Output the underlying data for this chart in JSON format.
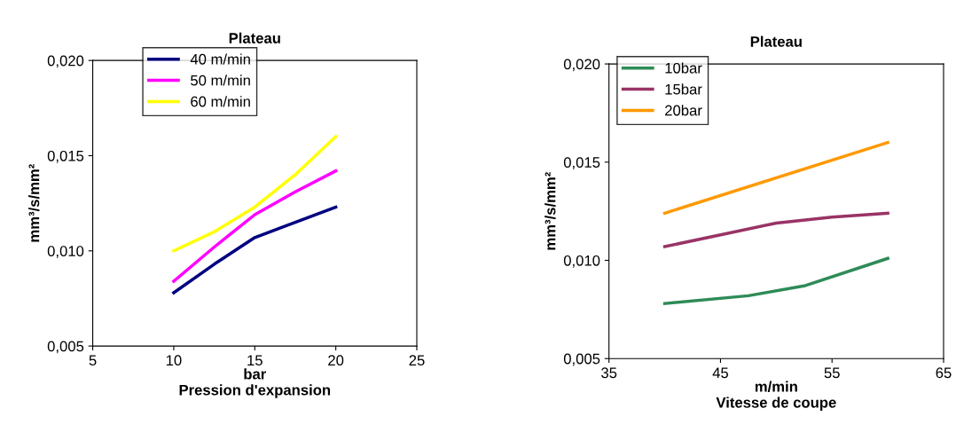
{
  "chart_data": [
    {
      "type": "line",
      "title": "Plateau",
      "xlabel": "bar\nPression d'expansion",
      "ylabel": "mm³/s/mm²",
      "legend": "top left",
      "grid": false,
      "marker": "none",
      "line_style": "solid",
      "xlim": [
        5,
        25
      ],
      "xticks": [
        5,
        10,
        15,
        20,
        25
      ],
      "ylim": [
        0.005,
        0.02
      ],
      "yticks": [
        {
          "value": 0.005,
          "label": "0,005"
        },
        {
          "value": 0.01,
          "label": "0,010"
        },
        {
          "value": 0.015,
          "label": "0,015"
        },
        {
          "value": 0.02,
          "label": "0,020"
        }
      ],
      "series": [
        {
          "name": "40 m/min",
          "color": "#000080",
          "x": [
            10,
            12.5,
            15,
            17.5,
            20
          ],
          "values": [
            0.0078,
            0.0093,
            0.0107,
            0.0115,
            0.0123
          ]
        },
        {
          "name": "50 m/min",
          "color": "#ff00ff",
          "x": [
            10,
            12.5,
            15,
            17.5,
            20
          ],
          "values": [
            0.0084,
            0.0102,
            0.0119,
            0.0131,
            0.0142
          ]
        },
        {
          "name": "60 m/min",
          "color": "#ffff00",
          "x": [
            10,
            12.5,
            15,
            17.5,
            20
          ],
          "values": [
            0.01,
            0.011,
            0.0123,
            0.014,
            0.016
          ]
        }
      ]
    },
    {
      "type": "line",
      "title": "Plateau",
      "xlabel": "m/min\nVitesse de coupe",
      "ylabel": "mm³/s/mm²",
      "legend": "top left",
      "grid": false,
      "marker": "none",
      "line_style": "solid",
      "xlim": [
        35,
        65
      ],
      "xticks": [
        35,
        45,
        55,
        65
      ],
      "ylim": [
        0.005,
        0.02
      ],
      "yticks": [
        {
          "value": 0.005,
          "label": "0,005"
        },
        {
          "value": 0.01,
          "label": "0,010"
        },
        {
          "value": 0.015,
          "label": "0,015"
        },
        {
          "value": 0.02,
          "label": "0,020"
        }
      ],
      "series": [
        {
          "name": "10bar",
          "color": "#2e8b57",
          "x": [
            40,
            47.5,
            52.5,
            60
          ],
          "values": [
            0.0078,
            0.0082,
            0.0087,
            0.0101
          ]
        },
        {
          "name": "15bar",
          "color": "#993366",
          "x": [
            40,
            45,
            50,
            55,
            60
          ],
          "values": [
            0.0107,
            0.0113,
            0.0119,
            0.0122,
            0.0124
          ]
        },
        {
          "name": "20bar",
          "color": "#ff9900",
          "x": [
            40,
            60
          ],
          "values": [
            0.0124,
            0.016
          ]
        }
      ]
    }
  ]
}
